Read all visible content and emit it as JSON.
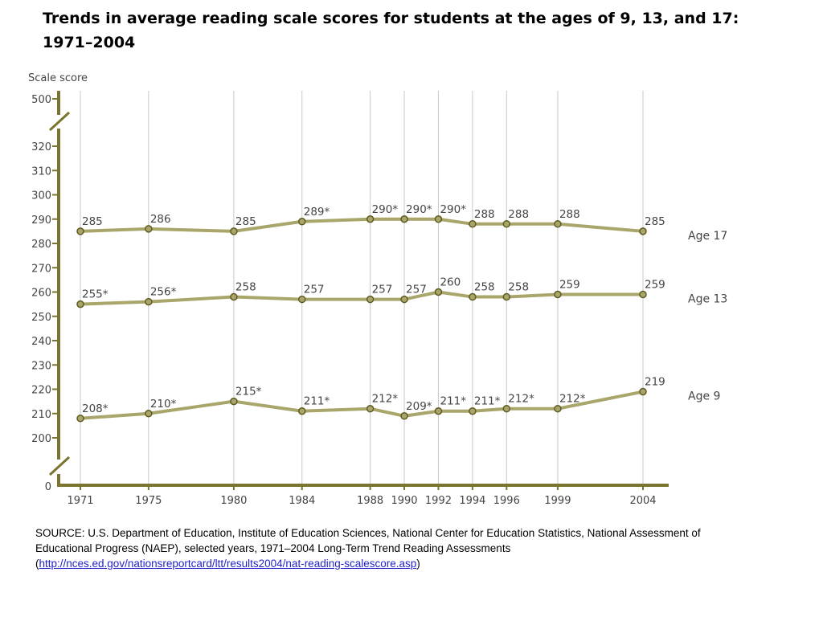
{
  "title": "Trends in average reading scale scores for students at the ages of 9, 13, and 17: 1971–2004",
  "chart_data": {
    "type": "line",
    "ylabel": "Scale score",
    "y_ticks": [
      0,
      200,
      210,
      220,
      230,
      240,
      250,
      260,
      270,
      280,
      290,
      300,
      310,
      320,
      500
    ],
    "y_axis_break": true,
    "grid": "vertical at each year",
    "x": [
      1971,
      1975,
      1980,
      1984,
      1988,
      1990,
      1992,
      1994,
      1996,
      1999,
      2004
    ],
    "series": [
      {
        "name": "Age 17",
        "values": [
          285,
          286,
          285,
          289,
          290,
          290,
          290,
          288,
          288,
          288,
          285
        ],
        "labels": [
          "285",
          "286",
          "285",
          "289*",
          "290*",
          "290*",
          "290*",
          "288",
          "288",
          "288",
          "285"
        ]
      },
      {
        "name": "Age 13",
        "values": [
          255,
          256,
          258,
          257,
          257,
          257,
          260,
          258,
          258,
          259,
          259
        ],
        "labels": [
          "255*",
          "256*",
          "258",
          "257",
          "257",
          "257",
          "260",
          "258",
          "258",
          "259",
          "259"
        ]
      },
      {
        "name": "Age 9",
        "values": [
          208,
          210,
          215,
          211,
          212,
          209,
          211,
          211,
          212,
          212,
          219
        ],
        "labels": [
          "208*",
          "210*",
          "215*",
          "211*",
          "212*",
          "209*",
          "211*",
          "211*",
          "212*",
          "212*",
          "219"
        ]
      }
    ],
    "colors": {
      "line": "#a8a66a",
      "marker_fill": "#a8a66a",
      "marker_stroke": "#5f5a20",
      "axis": "#7a7430",
      "grid": "#c8c8c8"
    }
  },
  "source": {
    "text": "SOURCE: U.S. Department of Education, Institute of Education Sciences, National Center for Education Statistics, National Assessment of Educational Progress (NAEP), selected years, 1971–2004 Long-Term Trend Reading Assessments (",
    "link": "http://nces.ed.gov/nationsreportcard/ltt/results2004/nat-reading-scalescore.asp",
    "suffix": ")"
  }
}
